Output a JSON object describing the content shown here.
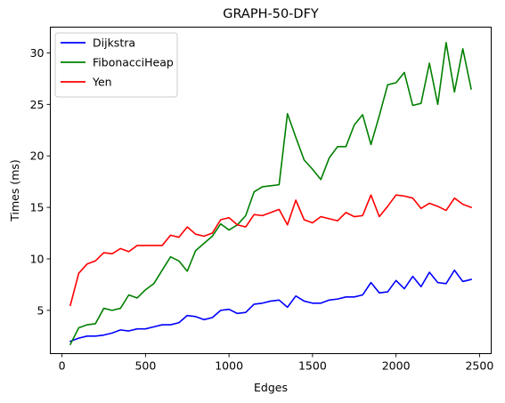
{
  "chart_data": {
    "type": "line",
    "title": "GRAPH-50-DFY",
    "xlabel": "Edges",
    "ylabel": "Times (ms)",
    "xlim": [
      -70,
      2570
    ],
    "ylim": [
      0.8,
      32.5
    ],
    "xticks": [
      0,
      500,
      1000,
      1500,
      2000,
      2500
    ],
    "yticks": [
      5,
      10,
      15,
      20,
      25,
      30
    ],
    "grid": false,
    "legend_position": "top-left",
    "x": [
      50,
      100,
      150,
      200,
      250,
      300,
      350,
      400,
      450,
      500,
      550,
      600,
      650,
      700,
      750,
      800,
      850,
      900,
      950,
      1000,
      1050,
      1100,
      1150,
      1200,
      1250,
      1300,
      1350,
      1400,
      1450,
      1500,
      1550,
      1600,
      1650,
      1700,
      1750,
      1800,
      1850,
      1900,
      1950,
      2000,
      2050,
      2100,
      2150,
      2200,
      2250,
      2300,
      2350,
      2400,
      2450
    ],
    "series": [
      {
        "name": "Dijkstra",
        "color": "#0000ff",
        "values": [
          2.0,
          2.3,
          2.5,
          2.5,
          2.6,
          2.8,
          3.1,
          3.0,
          3.2,
          3.2,
          3.4,
          3.6,
          3.6,
          3.8,
          4.5,
          4.4,
          4.1,
          4.3,
          5.0,
          5.1,
          4.7,
          4.8,
          5.6,
          5.7,
          5.9,
          6.0,
          5.3,
          6.4,
          5.9,
          5.7,
          5.7,
          6.0,
          6.1,
          6.3,
          6.3,
          6.5,
          7.7,
          6.7,
          6.8,
          7.9,
          7.1,
          8.3,
          7.3,
          8.7,
          7.7,
          7.6,
          8.9,
          7.8,
          8.0
        ]
      },
      {
        "name": "FibonacciHeap",
        "color": "#008000",
        "values": [
          1.7,
          3.3,
          3.6,
          3.7,
          5.2,
          5.0,
          5.2,
          6.5,
          6.2,
          7.0,
          7.6,
          8.9,
          10.2,
          9.8,
          8.8,
          10.8,
          11.5,
          12.2,
          13.4,
          12.8,
          13.3,
          14.2,
          16.5,
          17.0,
          17.1,
          17.2,
          24.1,
          21.8,
          19.6,
          18.7,
          17.7,
          19.8,
          20.9,
          20.9,
          23.0,
          24.0,
          21.1,
          23.9,
          26.9,
          27.1,
          28.1,
          24.9,
          25.1,
          29.0,
          25.0,
          31.0,
          26.2,
          30.4,
          26.5
        ]
      },
      {
        "name": "Yen",
        "color": "#ff0000",
        "values": [
          5.5,
          8.6,
          9.5,
          9.8,
          10.6,
          10.5,
          11.0,
          10.7,
          11.3,
          11.3,
          11.3,
          11.3,
          12.3,
          12.1,
          13.1,
          12.4,
          12.2,
          12.5,
          13.8,
          14.0,
          13.3,
          13.1,
          14.3,
          14.2,
          14.5,
          14.8,
          13.3,
          15.7,
          13.8,
          13.5,
          14.1,
          13.9,
          13.7,
          14.5,
          14.1,
          14.2,
          16.2,
          14.1,
          15.1,
          16.2,
          16.1,
          15.9,
          14.9,
          15.4,
          15.1,
          14.7,
          15.9,
          15.3,
          15.0
        ]
      }
    ]
  }
}
